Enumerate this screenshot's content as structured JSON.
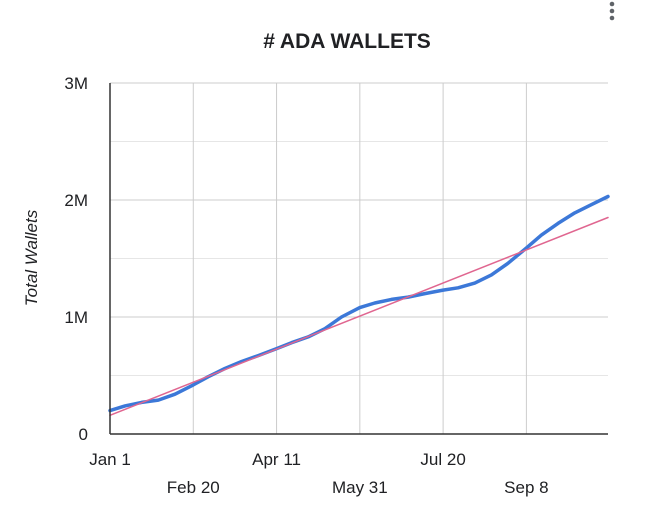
{
  "chart_data": {
    "type": "line",
    "title": "# ADA WALLETS",
    "xlabel": "",
    "ylabel": "Total Wallets",
    "x_ticks": [
      {
        "label": "Jan 1",
        "day": 1,
        "row": 0
      },
      {
        "label": "Feb 20",
        "day": 51,
        "row": 1
      },
      {
        "label": "Apr 11",
        "day": 101,
        "row": 0
      },
      {
        "label": "May 31",
        "day": 151,
        "row": 1
      },
      {
        "label": "Jul 20",
        "day": 201,
        "row": 0
      },
      {
        "label": "Sep 8",
        "day": 251,
        "row": 1
      }
    ],
    "y_ticks": [
      {
        "label": "0",
        "value": 0
      },
      {
        "label": "1M",
        "value": 1000000
      },
      {
        "label": "2M",
        "value": 2000000
      },
      {
        "label": "3M",
        "value": 3000000
      }
    ],
    "xlim": [
      1,
      300
    ],
    "ylim": [
      0,
      3000000
    ],
    "grid": true,
    "series": [
      {
        "color": "#3c78d8",
        "points": [
          [
            1,
            200000
          ],
          [
            10,
            240000
          ],
          [
            20,
            270000
          ],
          [
            30,
            290000
          ],
          [
            40,
            340000
          ],
          [
            51,
            420000
          ],
          [
            60,
            490000
          ],
          [
            70,
            560000
          ],
          [
            80,
            620000
          ],
          [
            90,
            670000
          ],
          [
            101,
            730000
          ],
          [
            110,
            780000
          ],
          [
            120,
            830000
          ],
          [
            130,
            900000
          ],
          [
            140,
            1000000
          ],
          [
            151,
            1080000
          ],
          [
            160,
            1120000
          ],
          [
            170,
            1150000
          ],
          [
            180,
            1170000
          ],
          [
            190,
            1200000
          ],
          [
            201,
            1230000
          ],
          [
            210,
            1250000
          ],
          [
            220,
            1290000
          ],
          [
            230,
            1360000
          ],
          [
            240,
            1460000
          ],
          [
            251,
            1590000
          ],
          [
            260,
            1700000
          ],
          [
            270,
            1800000
          ],
          [
            280,
            1890000
          ],
          [
            290,
            1960000
          ],
          [
            300,
            2030000
          ]
        ]
      },
      {
        "color": "#e06690",
        "points": [
          [
            1,
            160000
          ],
          [
            300,
            1850000
          ]
        ]
      }
    ]
  },
  "menu_icon": "more-vert-icon"
}
